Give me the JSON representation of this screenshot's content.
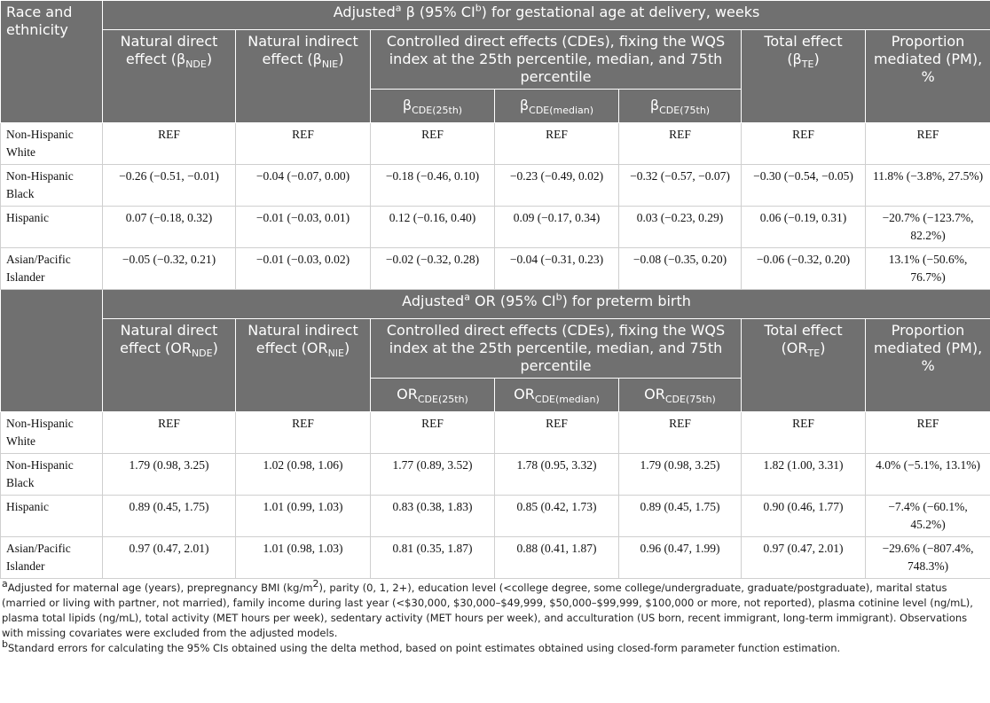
{
  "sections": [
    {
      "race_header": "Race and ethnicity",
      "title": [
        "Adjusted",
        "a",
        " β (95% CI",
        "b",
        ") for gestational age at delivery, weeks"
      ],
      "columns": {
        "nde": [
          "Natural direct effect (β",
          "NDE",
          ")"
        ],
        "nie": [
          "Natural indirect effect (β",
          "NIE",
          ")"
        ],
        "cde_group": "Controlled direct effects (CDEs), fixing the WQS index at the 25th percentile, median, and 75th percentile",
        "cde": [
          [
            "β",
            "CDE(25th)"
          ],
          [
            "β",
            "CDE(median)"
          ],
          [
            "β",
            "CDE(75th)"
          ]
        ],
        "te": [
          "Total effect (β",
          "TE",
          ")"
        ],
        "pm": "Proportion mediated (PM), %"
      },
      "rows": [
        {
          "label": "Non-Hispanic White",
          "cells": [
            "REF",
            "REF",
            "REF",
            "REF",
            "REF",
            "REF",
            "REF"
          ]
        },
        {
          "label": "Non-Hispanic Black",
          "cells": [
            "−0.26 (−0.51, −0.01)",
            "−0.04 (−0.07, 0.00)",
            "−0.18 (−0.46, 0.10)",
            "−0.23 (−0.49, 0.02)",
            "−0.32 (−0.57, −0.07)",
            "−0.30 (−0.54, −0.05)",
            "11.8% (−3.8%, 27.5%)"
          ]
        },
        {
          "label": "Hispanic",
          "cells": [
            "0.07 (−0.18, 0.32)",
            "−0.01 (−0.03, 0.01)",
            "0.12 (−0.16, 0.40)",
            "0.09 (−0.17, 0.34)",
            "0.03 (−0.23, 0.29)",
            "0.06 (−0.19, 0.31)",
            "−20.7% (−123.7%, 82.2%)"
          ]
        },
        {
          "label": "Asian/Pacific Islander",
          "cells": [
            "−0.05 (−0.32, 0.21)",
            "−0.01 (−0.03, 0.02)",
            "−0.02 (−0.32, 0.28)",
            "−0.04 (−0.31, 0.23)",
            "−0.08 (−0.35, 0.20)",
            "−0.06 (−0.32, 0.20)",
            "13.1% (−50.6%, 76.7%)"
          ]
        }
      ]
    },
    {
      "title": [
        "Adjusted",
        "a",
        " OR (95% CI",
        "b",
        ") for preterm birth"
      ],
      "columns": {
        "nde": [
          "Natural direct effect (OR",
          "NDE",
          ")"
        ],
        "nie": [
          "Natural indirect effect (OR",
          "NIE",
          ")"
        ],
        "cde_group": "Controlled direct effects (CDEs), fixing the WQS index at the 25th percentile, median, and 75th percentile",
        "cde": [
          [
            "OR",
            "CDE(25th)"
          ],
          [
            "OR",
            "CDE(median)"
          ],
          [
            "OR",
            "CDE(75th)"
          ]
        ],
        "te": [
          "Total effect (OR",
          "TE",
          ")"
        ],
        "pm": "Proportion mediated (PM), %"
      },
      "rows": [
        {
          "label": "Non-Hispanic White",
          "cells": [
            "REF",
            "REF",
            "REF",
            "REF",
            "REF",
            "REF",
            "REF"
          ]
        },
        {
          "label": "Non-Hispanic Black",
          "cells": [
            "1.79 (0.98, 3.25)",
            "1.02 (0.98, 1.06)",
            "1.77 (0.89, 3.52)",
            "1.78 (0.95, 3.32)",
            "1.79 (0.98, 3.25)",
            "1.82 (1.00, 3.31)",
            "4.0% (−5.1%, 13.1%)"
          ]
        },
        {
          "label": "Hispanic",
          "cells": [
            "0.89 (0.45, 1.75)",
            "1.01 (0.99, 1.03)",
            "0.83 (0.38, 1.83)",
            "0.85 (0.42, 1.73)",
            "0.89 (0.45, 1.75)",
            "0.90 (0.46, 1.77)",
            "−7.4% (−60.1%, 45.2%)"
          ]
        },
        {
          "label": "Asian/Pacific Islander",
          "cells": [
            "0.97 (0.47, 2.01)",
            "1.01 (0.98, 1.03)",
            "0.81 (0.35, 1.87)",
            "0.88 (0.41, 1.87)",
            "0.96 (0.47, 1.99)",
            "0.97 (0.47, 2.01)",
            "−29.6% (−807.4%, 748.3%)"
          ]
        }
      ]
    }
  ],
  "footnotes": [
    [
      "a",
      "Adjusted for maternal age (years), prepregnancy BMI (kg/m",
      "2",
      "), parity (0, 1, 2+), education level (<college degree, some college/undergraduate, graduate/postgraduate), marital status (married or living with partner, not married), family income during last year (<$30,000, $30,000–$49,999, $50,000–$99,999, $100,000 or more, not reported), plasma cotinine level (ng/mL), plasma total lipids (ng/mL), total activity (MET hours per week), sedentary activity (MET hours per week), and acculturation (US born, recent immigrant, long-term immigrant). Observations with missing covariates were excluded from the adjusted models."
    ],
    [
      "b",
      "Standard errors for calculating the 95% CIs obtained using the delta method, based on point estimates obtained using closed-form parameter function estimation."
    ]
  ]
}
